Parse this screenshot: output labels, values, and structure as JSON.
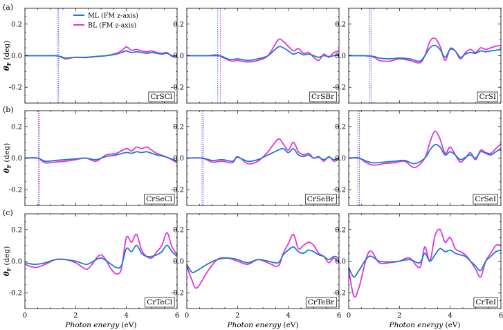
{
  "figure": {
    "row_labels": [
      "(a)",
      "(b)",
      "(c)"
    ],
    "xlabel_text": "Photon energy",
    "xlabel_unit": "(eV)",
    "ylabel_main": "θ",
    "ylabel_sub": "F",
    "ylabel_unit": "(deg)",
    "legend": [
      {
        "name": "ML  (FM z-axis)",
        "color": "#1f77d4"
      },
      {
        "name": "BL  (FM z-axis)",
        "color": "#e033e0"
      }
    ],
    "colors": {
      "ML": "#1f77d4",
      "BL": "#e033e0",
      "axis": "#000000",
      "gap_line_ml": "#1f77d4",
      "gap_line_bl": "#e033e0"
    },
    "xticks": [
      0,
      2,
      4,
      6
    ],
    "xlim": [
      0,
      6
    ],
    "yticks": [
      -0.2,
      0.0,
      0.2
    ],
    "ytick_labels": [
      "-0.2",
      "0.0",
      "0.2"
    ],
    "ylim": [
      -0.3,
      0.3
    ]
  },
  "chart_data": [
    {
      "type": "line",
      "label": "CrSCl",
      "gap_ml": 1.33,
      "gap_bl": 1.28,
      "series": [
        {
          "name": "ML  (FM z-axis)",
          "x": [
            0,
            0.8,
            1.2,
            1.4,
            1.6,
            1.8,
            2.0,
            2.4,
            2.8,
            3.2,
            3.6,
            3.8,
            4.0,
            4.2,
            4.4,
            4.6,
            4.8,
            5.0,
            5.2,
            5.4,
            5.6,
            5.8,
            6.0
          ],
          "y": [
            0,
            0,
            0,
            -0.005,
            -0.015,
            -0.012,
            -0.01,
            -0.01,
            -0.005,
            0.0,
            0.01,
            0.02,
            0.03,
            0.02,
            0.025,
            0.02,
            0.015,
            0.02,
            0.015,
            0.01,
            0.015,
            0.0,
            -0.005
          ]
        },
        {
          "name": "BL  (FM z-axis)",
          "x": [
            0,
            0.8,
            1.2,
            1.4,
            1.6,
            1.8,
            2.0,
            2.4,
            2.8,
            3.2,
            3.6,
            3.8,
            4.0,
            4.2,
            4.4,
            4.6,
            4.8,
            5.0,
            5.2,
            5.4,
            5.6,
            5.8,
            6.0
          ],
          "y": [
            0,
            0,
            0,
            -0.008,
            -0.02,
            -0.015,
            -0.01,
            -0.012,
            -0.005,
            0.0,
            0.015,
            0.03,
            0.055,
            0.035,
            0.04,
            0.03,
            0.025,
            0.03,
            0.02,
            0.015,
            0.02,
            -0.005,
            0.0
          ]
        }
      ]
    },
    {
      "type": "line",
      "label": "CrSBr",
      "gap_ml": 1.22,
      "gap_bl": 1.32,
      "series": [
        {
          "name": "ML  (FM z-axis)",
          "x": [
            0,
            0.8,
            1.2,
            1.4,
            1.6,
            1.8,
            2.0,
            2.4,
            2.8,
            3.2,
            3.6,
            3.8,
            4.0,
            4.2,
            4.4,
            4.6,
            4.8,
            5.0,
            5.2,
            5.4,
            5.6,
            5.8,
            6.0
          ],
          "y": [
            0,
            0,
            0.0,
            -0.005,
            -0.02,
            -0.025,
            -0.02,
            -0.03,
            -0.02,
            0.0,
            0.055,
            0.05,
            0.03,
            0.01,
            0.02,
            0.005,
            0.01,
            0.0,
            -0.01,
            0.0,
            -0.005,
            0.0,
            0.01
          ]
        },
        {
          "name": "BL  (FM z-axis)",
          "x": [
            0,
            0.8,
            1.2,
            1.4,
            1.6,
            1.8,
            2.0,
            2.4,
            2.8,
            3.2,
            3.6,
            3.8,
            4.0,
            4.2,
            4.4,
            4.6,
            4.8,
            5.0,
            5.2,
            5.4,
            5.6,
            5.8,
            6.0
          ],
          "y": [
            0,
            0,
            0.005,
            -0.01,
            -0.025,
            -0.035,
            -0.03,
            -0.04,
            -0.03,
            0.0,
            0.1,
            0.09,
            0.06,
            0.03,
            0.045,
            0.015,
            0.02,
            -0.01,
            -0.03,
            0.01,
            -0.01,
            0.02,
            0.03
          ]
        }
      ]
    },
    {
      "type": "line",
      "label": "CrSI",
      "gap_ml": 0.88,
      "gap_bl": 0.82,
      "series": [
        {
          "name": "ML  (FM z-axis)",
          "x": [
            0,
            0.6,
            1.0,
            1.2,
            1.6,
            2.0,
            2.4,
            2.8,
            3.0,
            3.2,
            3.4,
            3.6,
            3.8,
            4.0,
            4.2,
            4.4,
            4.6,
            4.8,
            5.0,
            5.2,
            5.4,
            5.6,
            5.8,
            6.0
          ],
          "y": [
            0,
            0,
            -0.005,
            -0.015,
            -0.02,
            -0.015,
            -0.02,
            -0.035,
            0.0,
            0.05,
            0.065,
            0.04,
            -0.01,
            0.04,
            0.03,
            -0.01,
            0.01,
            0.02,
            0.015,
            0.03,
            0.025,
            0.03,
            0.035,
            0.04
          ]
        },
        {
          "name": "BL  (FM z-axis)",
          "x": [
            0,
            0.6,
            1.0,
            1.2,
            1.6,
            2.0,
            2.4,
            2.8,
            3.0,
            3.2,
            3.4,
            3.6,
            3.8,
            4.0,
            4.2,
            4.4,
            4.6,
            4.8,
            5.0,
            5.2,
            5.4,
            5.6,
            5.8,
            6.0
          ],
          "y": [
            0,
            0,
            -0.01,
            -0.03,
            -0.035,
            -0.02,
            -0.03,
            -0.045,
            0.0,
            0.09,
            0.11,
            0.06,
            -0.03,
            0.045,
            0.03,
            -0.02,
            0.02,
            0.04,
            0.02,
            0.05,
            0.04,
            0.05,
            0.06,
            0.065
          ]
        }
      ]
    },
    {
      "type": "line",
      "label": "CrSeCl",
      "gap_ml": 0.57,
      "gap_bl": 0.53,
      "series": [
        {
          "name": "ML  (FM z-axis)",
          "x": [
            0,
            0.5,
            0.8,
            1.2,
            1.6,
            2.0,
            2.4,
            2.8,
            3.2,
            3.6,
            4.0,
            4.2,
            4.4,
            4.6,
            4.8,
            5.0,
            5.2,
            5.6,
            6.0
          ],
          "y": [
            0,
            0,
            -0.02,
            -0.015,
            -0.01,
            -0.005,
            0.0,
            -0.01,
            0.01,
            0.02,
            0.035,
            0.03,
            0.04,
            0.035,
            0.04,
            0.03,
            0.02,
            0.005,
            -0.02
          ]
        },
        {
          "name": "BL  (FM z-axis)",
          "x": [
            0,
            0.5,
            0.8,
            1.2,
            1.6,
            2.0,
            2.4,
            2.8,
            3.2,
            3.6,
            4.0,
            4.2,
            4.4,
            4.6,
            4.8,
            5.0,
            5.2,
            5.6,
            6.0
          ],
          "y": [
            0,
            0,
            -0.03,
            -0.025,
            -0.02,
            -0.01,
            0.0,
            -0.02,
            0.02,
            0.03,
            0.06,
            0.045,
            0.07,
            0.06,
            0.07,
            0.05,
            0.03,
            0.005,
            -0.03
          ]
        }
      ]
    },
    {
      "type": "line",
      "label": "CrSeBr",
      "gap_ml": 0.65,
      "gap_bl": 0.6,
      "series": [
        {
          "name": "ML  (FM z-axis)",
          "x": [
            0,
            0.6,
            1.0,
            1.4,
            1.8,
            2.0,
            2.4,
            2.8,
            3.2,
            3.6,
            3.8,
            4.0,
            4.2,
            4.4,
            4.6,
            4.8,
            5.0,
            5.2,
            5.4,
            5.6,
            5.8,
            6.0
          ],
          "y": [
            0,
            0,
            -0.015,
            -0.01,
            -0.02,
            0.005,
            -0.02,
            -0.01,
            0.02,
            0.05,
            0.06,
            0.035,
            0.06,
            0.02,
            0.01,
            0.02,
            0.0,
            0.005,
            -0.01,
            0.005,
            -0.01,
            0.0
          ]
        },
        {
          "name": "BL  (FM z-axis)",
          "x": [
            0,
            0.6,
            1.0,
            1.4,
            1.8,
            2.0,
            2.4,
            2.8,
            3.2,
            3.6,
            3.8,
            4.0,
            4.2,
            4.4,
            4.6,
            4.8,
            5.0,
            5.2,
            5.4,
            5.6,
            5.8,
            6.0
          ],
          "y": [
            0,
            0,
            -0.025,
            -0.02,
            -0.03,
            0.01,
            -0.035,
            -0.02,
            0.04,
            0.12,
            0.09,
            0.05,
            0.1,
            0.04,
            0.02,
            0.03,
            0.0,
            0.01,
            -0.02,
            0.01,
            -0.02,
            -0.005
          ]
        }
      ]
    },
    {
      "type": "line",
      "label": "CrSeI",
      "gap_ml": 0.42,
      "gap_bl": 0.36,
      "series": [
        {
          "name": "ML  (FM z-axis)",
          "x": [
            0,
            0.4,
            0.7,
            1.0,
            1.4,
            1.8,
            2.2,
            2.6,
            3.0,
            3.2,
            3.4,
            3.6,
            3.8,
            4.0,
            4.2,
            4.4,
            4.6,
            4.8,
            5.0,
            5.2,
            5.4,
            5.6,
            5.8,
            6.0
          ],
          "y": [
            0,
            0,
            -0.02,
            -0.03,
            -0.025,
            -0.02,
            -0.015,
            -0.035,
            0.0,
            0.05,
            0.085,
            0.07,
            0.02,
            0.04,
            0.02,
            -0.01,
            0.005,
            0.02,
            0.0,
            0.04,
            0.03,
            0.02,
            0.04,
            0.06
          ]
        },
        {
          "name": "BL  (FM z-axis)",
          "x": [
            0,
            0.4,
            0.7,
            1.0,
            1.4,
            1.8,
            2.2,
            2.6,
            3.0,
            3.2,
            3.4,
            3.6,
            3.8,
            4.0,
            4.2,
            4.4,
            4.6,
            4.8,
            5.0,
            5.2,
            5.4,
            5.6,
            5.8,
            6.0
          ],
          "y": [
            0,
            0,
            -0.03,
            -0.045,
            -0.035,
            -0.03,
            -0.02,
            -0.06,
            0.0,
            0.1,
            0.17,
            0.12,
            0.03,
            0.07,
            0.02,
            -0.025,
            0.0,
            0.035,
            -0.01,
            0.05,
            0.035,
            0.03,
            0.06,
            0.09
          ]
        }
      ]
    },
    {
      "type": "line",
      "label": "CrTeCl",
      "gap_ml": null,
      "gap_bl": null,
      "series": [
        {
          "name": "ML  (FM z-axis)",
          "x": [
            0,
            0.4,
            0.8,
            1.2,
            1.6,
            2.0,
            2.4,
            2.6,
            3.0,
            3.4,
            3.6,
            3.8,
            4.0,
            4.2,
            4.4,
            4.6,
            4.8,
            5.0,
            5.2,
            5.4,
            5.6,
            5.8,
            6.0
          ],
          "y": [
            -0.01,
            -0.02,
            -0.01,
            0.01,
            0.01,
            0.0,
            -0.02,
            -0.01,
            0.02,
            -0.02,
            -0.04,
            -0.03,
            0.08,
            0.06,
            0.1,
            0.05,
            0.03,
            0.03,
            0.04,
            0.06,
            0.1,
            0.06,
            0.03
          ]
        },
        {
          "name": "BL  (FM z-axis)",
          "x": [
            0,
            0.4,
            0.8,
            1.2,
            1.6,
            2.0,
            2.4,
            2.6,
            3.0,
            3.4,
            3.6,
            3.8,
            4.0,
            4.2,
            4.4,
            4.6,
            4.8,
            5.0,
            5.2,
            5.4,
            5.6,
            5.8,
            6.0
          ],
          "y": [
            -0.02,
            -0.04,
            -0.02,
            0.01,
            0.01,
            -0.01,
            -0.05,
            -0.03,
            0.04,
            -0.05,
            -0.08,
            -0.05,
            0.15,
            0.12,
            0.17,
            0.07,
            0.03,
            0.02,
            0.06,
            0.1,
            0.18,
            0.09,
            0.04
          ]
        }
      ]
    },
    {
      "type": "line",
      "label": "CrTeBr",
      "gap_ml": null,
      "gap_bl": null,
      "series": [
        {
          "name": "ML  (FM z-axis)",
          "x": [
            0,
            0.2,
            0.4,
            0.8,
            1.2,
            1.6,
            2.0,
            2.4,
            2.8,
            3.2,
            3.6,
            3.8,
            4.0,
            4.2,
            4.4,
            4.6,
            4.8,
            5.0,
            5.2,
            5.4,
            5.6,
            5.8,
            6.0
          ],
          "y": [
            -0.02,
            -0.07,
            -0.06,
            -0.02,
            0.01,
            0.02,
            0.01,
            -0.01,
            0.01,
            0.0,
            -0.01,
            0.04,
            0.07,
            0.09,
            0.06,
            0.05,
            0.07,
            0.06,
            0.04,
            0.03,
            0.01,
            0.03,
            0.02
          ]
        },
        {
          "name": "BL  (FM z-axis)",
          "x": [
            0,
            0.2,
            0.4,
            0.8,
            1.2,
            1.6,
            2.0,
            2.4,
            2.8,
            3.2,
            3.6,
            3.8,
            4.0,
            4.2,
            4.4,
            4.6,
            4.8,
            5.0,
            5.2,
            5.4,
            5.6,
            5.8,
            6.0
          ],
          "y": [
            -0.03,
            -0.12,
            -0.17,
            -0.07,
            0.01,
            0.02,
            0.0,
            -0.02,
            0.01,
            -0.01,
            -0.03,
            0.05,
            0.11,
            0.17,
            0.08,
            0.1,
            0.12,
            0.1,
            0.05,
            0.03,
            -0.01,
            0.02,
            -0.01
          ]
        }
      ]
    },
    {
      "type": "line",
      "label": "CrTeI",
      "gap_ml": null,
      "gap_bl": null,
      "series": [
        {
          "name": "ML  (FM z-axis)",
          "x": [
            0,
            0.2,
            0.4,
            0.8,
            1.2,
            1.6,
            2.0,
            2.4,
            2.8,
            3.0,
            3.2,
            3.4,
            3.6,
            3.8,
            4.0,
            4.2,
            4.4,
            4.6,
            4.8,
            5.0,
            5.2,
            5.4,
            5.6,
            5.8,
            6.0
          ],
          "y": [
            -0.04,
            -0.1,
            -0.06,
            0.03,
            0.0,
            -0.005,
            0.0,
            0.01,
            -0.01,
            0.05,
            0.0,
            0.04,
            0.08,
            0.06,
            0.07,
            0.05,
            0.04,
            0.03,
            0.0,
            -0.03,
            -0.06,
            0.0,
            0.03,
            0.06,
            0.07
          ]
        },
        {
          "name": "BL  (FM z-axis)",
          "x": [
            0,
            0.2,
            0.4,
            0.8,
            1.2,
            1.6,
            2.0,
            2.4,
            2.8,
            3.0,
            3.2,
            3.4,
            3.6,
            3.8,
            4.0,
            4.2,
            4.4,
            4.6,
            4.8,
            5.0,
            5.2,
            5.4,
            5.6,
            5.8,
            6.0
          ],
          "y": [
            -0.05,
            -0.22,
            -0.17,
            0.06,
            -0.01,
            -0.01,
            0.0,
            0.02,
            -0.04,
            0.09,
            0.0,
            0.16,
            0.2,
            0.12,
            0.15,
            0.08,
            0.06,
            0.04,
            0.0,
            -0.05,
            -0.1,
            0.0,
            0.05,
            0.1,
            0.1
          ]
        }
      ]
    }
  ]
}
